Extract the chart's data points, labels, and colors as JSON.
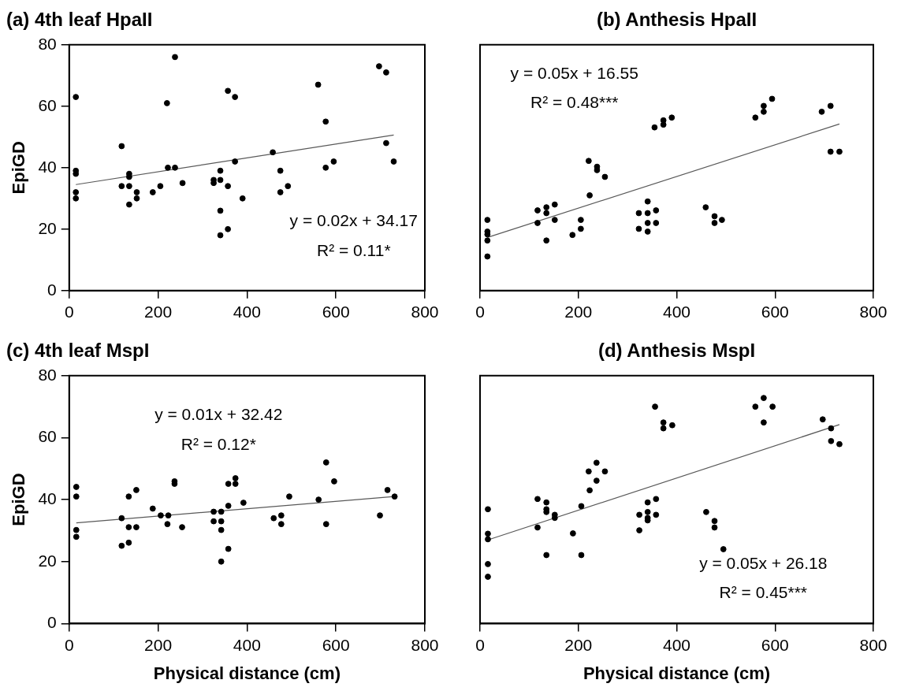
{
  "chart_data": [
    {
      "type": "scatter",
      "title": "(a) 4th leaf HpaII",
      "ylabel": "EpiGD",
      "xlim": [
        0,
        800
      ],
      "xticks": [
        0,
        200,
        400,
        600,
        800
      ],
      "ylim": [
        0,
        80
      ],
      "yticks": [
        0,
        20,
        40,
        60,
        80
      ],
      "grid": false,
      "legend": false,
      "annotations": [
        "y = 0.02x + 34.17",
        "R² = 0.11*"
      ],
      "series": [
        {
          "color": "#000000",
          "marker": "circle",
          "x": [
            15,
            15,
            15,
            15,
            15,
            118,
            118,
            135,
            135,
            135,
            135,
            152,
            152,
            188,
            205,
            220,
            222,
            238,
            238,
            255,
            325,
            325,
            340,
            340,
            340,
            340,
            357,
            357,
            357,
            373,
            373,
            390,
            458,
            475,
            475,
            492,
            560,
            577,
            577,
            595,
            697,
            713,
            713,
            730
          ],
          "values": [
            63,
            39,
            38,
            32,
            30,
            47,
            34,
            38,
            37,
            34,
            28,
            32,
            30,
            32,
            34,
            61,
            40,
            76,
            40,
            35,
            36,
            35,
            39,
            36,
            26,
            18,
            65,
            34,
            20,
            63,
            42,
            30,
            45,
            39,
            32,
            34,
            67,
            55,
            40,
            42,
            73,
            71,
            48,
            42
          ]
        },
        {
          "type": "line",
          "color": "#595959",
          "x": [
            15,
            730
          ],
          "values": [
            34.5,
            50.6
          ]
        }
      ]
    },
    {
      "type": "scatter",
      "title": "(b) Anthesis HpaII",
      "xlim": [
        0,
        800
      ],
      "xticks": [
        0,
        200,
        400,
        600,
        800
      ],
      "ylim": [
        0,
        80
      ],
      "yticks": [
        0,
        20,
        40,
        60,
        80
      ],
      "tick_labels": "x",
      "grid": false,
      "legend": false,
      "annotations": [
        "y = 0.05x + 16.55",
        "R² = 0.48***"
      ],
      "series": [
        {
          "color": "#000000",
          "marker": "circle",
          "x": [
            15,
            15,
            15,
            15,
            15,
            117,
            117,
            135,
            135,
            135,
            152,
            152,
            188,
            205,
            205,
            221,
            223,
            238,
            238,
            254,
            323,
            323,
            341,
            341,
            341,
            341,
            358,
            358,
            355,
            373,
            373,
            390,
            459,
            477,
            477,
            492,
            560,
            577,
            577,
            594,
            695,
            713,
            713,
            731
          ],
          "values": [
            23,
            19.2,
            18.3,
            16.3,
            11.1,
            26.1,
            22,
            27.1,
            25.2,
            16.3,
            28,
            23,
            18.1,
            23,
            20.1,
            42.2,
            31,
            40.3,
            39.2,
            37,
            25.2,
            20.1,
            29,
            25.2,
            22,
            19.2,
            26.1,
            22,
            53.1,
            55.4,
            54,
            56.3,
            27.1,
            24.2,
            22,
            23,
            56.3,
            60.1,
            58.2,
            62.4,
            58.2,
            60.1,
            45.2,
            45.2
          ]
        },
        {
          "type": "line",
          "color": "#595959",
          "x": [
            15,
            731
          ],
          "values": [
            17.3,
            54.2
          ]
        }
      ]
    },
    {
      "type": "scatter",
      "title": "(c) 4th leaf MspI",
      "xlabel": "Physical distance (cm)",
      "ylabel": "EpiGD",
      "xlim": [
        0,
        800
      ],
      "xticks": [
        0,
        200,
        400,
        600,
        800
      ],
      "ylim": [
        0,
        80
      ],
      "yticks": [
        0,
        20,
        40,
        60,
        80
      ],
      "grid": false,
      "legend": false,
      "annotations": [
        "y = 0.01x + 32.42",
        "R² = 0.12*"
      ],
      "series": [
        {
          "color": "#000000",
          "marker": "circle",
          "x": [
            16,
            16,
            16,
            16,
            118,
            118,
            134,
            134,
            134,
            151,
            151,
            188,
            206,
            223,
            221,
            237,
            237,
            254,
            325,
            325,
            342,
            342,
            342,
            342,
            358,
            358,
            358,
            374,
            374,
            392,
            460,
            477,
            477,
            495,
            561,
            578,
            578,
            596,
            699,
            716,
            732
          ],
          "values": [
            44.1,
            41,
            30.2,
            28,
            34,
            25.1,
            41,
            31.1,
            26.1,
            43.1,
            31.1,
            37.1,
            34.9,
            34.9,
            32.1,
            45.9,
            45.1,
            31.1,
            36.1,
            33,
            36.1,
            33,
            30.2,
            20,
            45.1,
            38,
            24.1,
            46.9,
            45.1,
            39,
            34,
            34.9,
            32.1,
            41,
            40,
            52,
            32.1,
            45.9,
            34.9,
            43.1,
            41
          ]
        },
        {
          "type": "line",
          "color": "#595959",
          "x": [
            16,
            732
          ],
          "values": [
            32.5,
            41
          ]
        }
      ]
    },
    {
      "type": "scatter",
      "title": "(d) Anthesis MspI",
      "xlabel": "Physical distance (cm)",
      "xlim": [
        0,
        800
      ],
      "xticks": [
        0,
        200,
        400,
        600,
        800
      ],
      "ylim": [
        0,
        80
      ],
      "yticks": [
        0,
        20,
        40,
        60,
        80
      ],
      "tick_labels": "x",
      "grid": false,
      "legend": false,
      "annotations": [
        "y = 0.05x + 26.18",
        "R² = 0.45***"
      ],
      "series": [
        {
          "color": "#000000",
          "marker": "circle",
          "x": [
            16,
            16,
            16,
            16,
            16,
            117,
            117,
            135,
            135,
            135,
            135,
            152,
            152,
            189,
            206,
            206,
            221,
            223,
            237,
            237,
            254,
            324,
            324,
            341,
            341,
            341,
            341,
            358,
            358,
            356,
            373,
            373,
            391,
            460,
            477,
            477,
            495,
            560,
            577,
            577,
            595,
            697,
            714,
            714,
            731
          ],
          "values": [
            36.9,
            29,
            27.2,
            19.2,
            15.1,
            40.2,
            31,
            39.1,
            36.9,
            36,
            22.1,
            35.1,
            34.1,
            29.1,
            37.9,
            22.1,
            49.1,
            43,
            51.9,
            46.1,
            49.1,
            35.1,
            30.1,
            39.1,
            36,
            34.1,
            33.3,
            40.2,
            35.1,
            70,
            64.9,
            63,
            64,
            36,
            33.1,
            31,
            24,
            70,
            72.8,
            64.9,
            70,
            65.9,
            63,
            58.9,
            57.9
          ]
        },
        {
          "type": "line",
          "color": "#595959",
          "x": [
            16,
            731
          ],
          "values": [
            27,
            64.2
          ]
        }
      ]
    }
  ]
}
